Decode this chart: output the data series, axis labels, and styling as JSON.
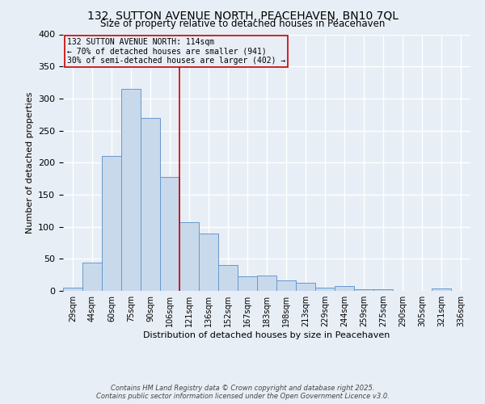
{
  "title_line1": "132, SUTTON AVENUE NORTH, PEACEHAVEN, BN10 7QL",
  "title_line2": "Size of property relative to detached houses in Peacehaven",
  "xlabel": "Distribution of detached houses by size in Peacehaven",
  "ylabel": "Number of detached properties",
  "categories": [
    "29sqm",
    "44sqm",
    "60sqm",
    "75sqm",
    "90sqm",
    "106sqm",
    "121sqm",
    "136sqm",
    "152sqm",
    "167sqm",
    "183sqm",
    "198sqm",
    "213sqm",
    "229sqm",
    "244sqm",
    "259sqm",
    "275sqm",
    "290sqm",
    "305sqm",
    "321sqm",
    "336sqm"
  ],
  "values": [
    5,
    44,
    210,
    315,
    270,
    178,
    107,
    90,
    40,
    23,
    24,
    16,
    13,
    5,
    7,
    3,
    2,
    0,
    0,
    4,
    0
  ],
  "bar_color": "#c8d9ec",
  "bar_edge_color": "#6699cc",
  "annotation_text": "132 SUTTON AVENUE NORTH: 114sqm\n← 70% of detached houses are smaller (941)\n30% of semi-detached houses are larger (402) →",
  "vline_color": "#cc0000",
  "annotation_box_color": "#cc0000",
  "ylim": [
    0,
    400
  ],
  "yticks": [
    0,
    50,
    100,
    150,
    200,
    250,
    300,
    350,
    400
  ],
  "footnote_line1": "Contains HM Land Registry data © Crown copyright and database right 2025.",
  "footnote_line2": "Contains public sector information licensed under the Open Government Licence v3.0.",
  "background_color": "#e8eef5",
  "grid_color": "#ffffff"
}
